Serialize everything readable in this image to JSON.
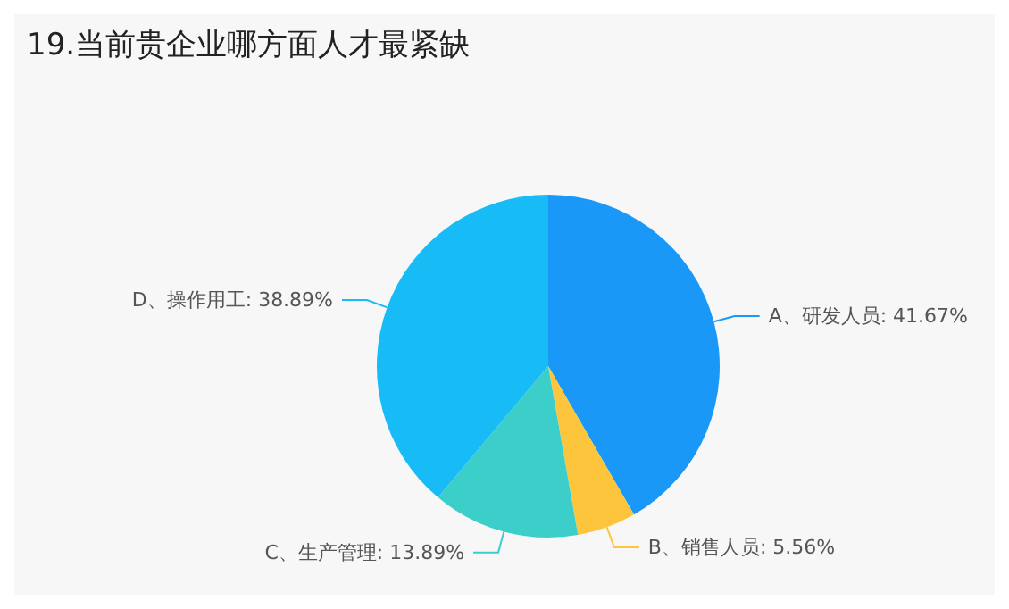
{
  "chart_data": {
    "type": "pie",
    "title": "19.当前贵企业哪方面人才最紧缺",
    "categories": [
      "A、研发人员",
      "B、销售人员",
      "C、生产管理",
      "D、操作用工"
    ],
    "values": [
      41.67,
      5.56,
      13.89,
      38.89
    ],
    "value_labels": [
      "41.67%",
      "5.56%",
      "13.89%",
      "38.89%"
    ],
    "colors": [
      "#1a98f8",
      "#fcc53c",
      "#3ccfc9",
      "#17bcf6"
    ],
    "legend": false
  }
}
